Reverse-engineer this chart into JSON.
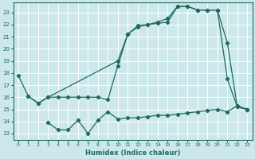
{
  "xlabel": "Humidex (Indice chaleur)",
  "bg_color": "#cde8ea",
  "grid_color": "#ffffff",
  "line_color": "#1e6b5e",
  "xlim": [
    -0.5,
    23.5
  ],
  "ylim": [
    12.5,
    23.8
  ],
  "yticks": [
    13,
    14,
    15,
    16,
    17,
    18,
    19,
    20,
    21,
    22,
    23
  ],
  "xticks": [
    0,
    1,
    2,
    3,
    4,
    5,
    6,
    7,
    8,
    9,
    10,
    11,
    12,
    13,
    14,
    15,
    16,
    17,
    18,
    19,
    20,
    21,
    22,
    23
  ],
  "line1_x": [
    0,
    1,
    2,
    3,
    4,
    5,
    6,
    7,
    8,
    9,
    10,
    11,
    12,
    13,
    14,
    15,
    16,
    17,
    18,
    19,
    20,
    21,
    22,
    23
  ],
  "line1_y": [
    17.8,
    16.1,
    15.5,
    16.0,
    16.0,
    16.0,
    16.0,
    16.0,
    16.0,
    15.8,
    18.6,
    21.2,
    21.8,
    22.0,
    22.1,
    22.2,
    23.5,
    23.5,
    23.2,
    23.2,
    23.2,
    20.5,
    15.2,
    15.0
  ],
  "line2_x": [
    1,
    2,
    3,
    10,
    11,
    12,
    13,
    14,
    15,
    16,
    17,
    18,
    19,
    20,
    21,
    22,
    23
  ],
  "line2_y": [
    16.1,
    15.5,
    16.0,
    19.0,
    21.2,
    21.9,
    22.0,
    22.2,
    22.5,
    23.5,
    23.5,
    23.2,
    23.2,
    23.2,
    17.5,
    15.2,
    15.0
  ],
  "line3_x": [
    3,
    4,
    5,
    6,
    7,
    8,
    9,
    10,
    11,
    12,
    13,
    14,
    15,
    16,
    17,
    18,
    19,
    20,
    21,
    22,
    23
  ],
  "line3_y": [
    13.9,
    13.3,
    13.3,
    14.1,
    13.0,
    14.1,
    14.8,
    14.2,
    14.3,
    14.3,
    14.4,
    14.5,
    14.5,
    14.6,
    14.7,
    14.8,
    14.9,
    15.0,
    14.8,
    15.3,
    15.0
  ]
}
